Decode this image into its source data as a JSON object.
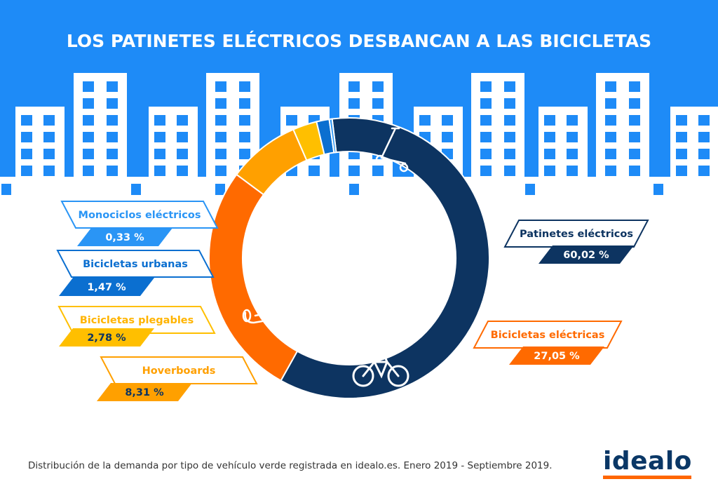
{
  "title": "LOS PATINETES ELÉCTRICOS DESBANCAN A LAS BICICLETAS",
  "footer": "Distribución de la demanda por tipo de vehículo verde registrada en idealo.es. Enero 2019 - Septiembre 2019.",
  "logo": "idealo",
  "colors": {
    "sky": "#1e8bf7",
    "buildings": "#ffffff",
    "windows": "#1e8bf7",
    "accent_logo": "#ff6600",
    "logo_text": "#0a3766"
  },
  "chart_data": {
    "type": "pie",
    "variant": "donut",
    "start_angle_deg": 97,
    "direction": "clockwise",
    "series": [
      {
        "name": "Patinetes eléctricos",
        "value": 60.02,
        "label": "60,02 %",
        "color": "#0d3461",
        "icon": "kick-scooter-icon"
      },
      {
        "name": "Bicicletas eléctricas",
        "value": 27.05,
        "label": "27,05 %",
        "color": "#ff6a00",
        "icon": "electric-bike-icon"
      },
      {
        "name": "Hoverboards",
        "value": 8.31,
        "label": "8,31 %",
        "color": "#ffa000",
        "icon": "hoverboard-icon"
      },
      {
        "name": "Bicicletas plegables",
        "value": 2.78,
        "label": "2,78 %",
        "color": "#ffbf00"
      },
      {
        "name": "Bicicletas urbanas",
        "value": 1.47,
        "label": "1,47 %",
        "color": "#0b6fd0"
      },
      {
        "name": "Monociclos eléctricos",
        "value": 0.33,
        "label": "0,33 %",
        "color": "#2a95f5"
      }
    ]
  }
}
